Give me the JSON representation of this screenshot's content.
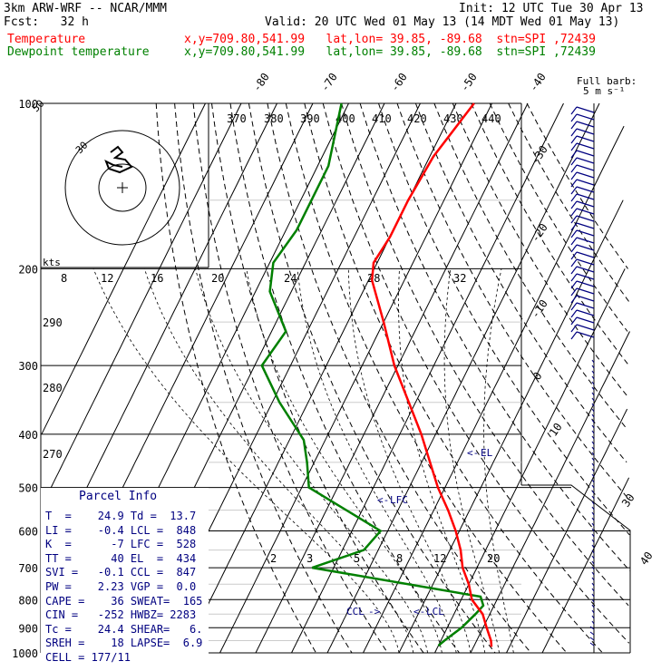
{
  "header": {
    "model": "3km ARW-WRF -- NCAR/MMM",
    "init": "Init: 12 UTC Tue 30 Apr 13",
    "fcst": "Fcst:   32 h",
    "valid": "Valid: 20 UTC Wed 01 May 13 (14 MDT Wed 01 May 13)",
    "temperature_label": "Temperature",
    "temperature_loc": "x,y=709.80,541.99   lat,lon= 39.85, -89.68  stn=SPI ,72439",
    "dewpoint_label": "Dewpoint temperature",
    "dewpoint_loc": "x,y=709.80,541.99   lat,lon= 39.85, -89.68  stn=SPI ,72439"
  },
  "colors": {
    "temperature": "#ff0000",
    "dewpoint": "#008000",
    "text_blue": "#000080",
    "grid": "#000000"
  },
  "barb_legend": {
    "line1": "Full barb:",
    "line2": "5 m s⁻¹"
  },
  "hodograph": {
    "units": "kts",
    "ring_labels": [
      "30",
      "50"
    ]
  },
  "chart_data": {
    "type": "line",
    "title": "",
    "xlabel": "",
    "ylabel": "",
    "pressure_levels": [
      100,
      200,
      300,
      400,
      500,
      600,
      700,
      800,
      900,
      1000
    ],
    "pressure_labels": [
      "100",
      "200",
      "300",
      "400",
      "500",
      "600",
      "700",
      "800",
      "900",
      "1000"
    ],
    "top_temp_labels": [
      "-80",
      "-70",
      "-60",
      "-50",
      "-40"
    ],
    "right_temp_labels": [
      "-30",
      "-20",
      "-10",
      "0",
      "10",
      "30",
      "40"
    ],
    "theta_labels": [
      "370",
      "380",
      "390",
      "400",
      "410",
      "420",
      "430",
      "440"
    ],
    "theta_left_labels": [
      "290",
      "280",
      "270"
    ],
    "mixing_ratio_labels": [
      "8",
      "12",
      "16",
      "20",
      "24",
      "28",
      "32"
    ],
    "mixing_ratio_low_labels": [
      "2",
      "3",
      "5",
      "8",
      "12",
      "20"
    ],
    "annotations": [
      "EL",
      "LFC",
      "CCL",
      "LCL"
    ],
    "series": [
      {
        "name": "Temperature",
        "points": [
          [
            100,
            -55
          ],
          [
            125,
            -59
          ],
          [
            150,
            -60
          ],
          [
            175,
            -60
          ],
          [
            195,
            -61
          ],
          [
            210,
            -59
          ],
          [
            250,
            -50
          ],
          [
            300,
            -41
          ],
          [
            400,
            -24
          ],
          [
            500,
            -12
          ],
          [
            550,
            -6
          ],
          [
            600,
            -1
          ],
          [
            650,
            3
          ],
          [
            700,
            6
          ],
          [
            750,
            10
          ],
          [
            800,
            13
          ],
          [
            850,
            18
          ],
          [
            900,
            21
          ],
          [
            950,
            24
          ],
          [
            975,
            25
          ]
        ]
      },
      {
        "name": "Dewpoint temperature",
        "points": [
          [
            100,
            -92
          ],
          [
            130,
            -87
          ],
          [
            170,
            -87
          ],
          [
            195,
            -89
          ],
          [
            220,
            -86
          ],
          [
            260,
            -76
          ],
          [
            300,
            -78
          ],
          [
            350,
            -68
          ],
          [
            410,
            -56
          ],
          [
            450,
            -52
          ],
          [
            500,
            -48
          ],
          [
            600,
            -22
          ],
          [
            650,
            -24
          ],
          [
            700,
            -36
          ],
          [
            790,
            15
          ],
          [
            820,
            17
          ],
          [
            850,
            16
          ],
          [
            900,
            14
          ],
          [
            950,
            11
          ],
          [
            970,
            10
          ]
        ]
      }
    ]
  },
  "parcel": {
    "title": "Parcel Info",
    "rows": [
      "T  =    24.9 Td =  13.7",
      "LI =    -0.4 LCL =  848",
      "K  =      -7 LFC =  528",
      "TT =      40 EL  =  434",
      "SVI =   -0.1 CCL =  847",
      "PW =    2.23 VGP =  0.0",
      "CAPE =    36 SWEAT=  165",
      "CIN =   -252 HWBZ= 2283",
      "Tc =    24.4 SHEAR=   6.",
      "SREH =    18 LAPSE=  6.9",
      "CELL = 177/11"
    ]
  }
}
